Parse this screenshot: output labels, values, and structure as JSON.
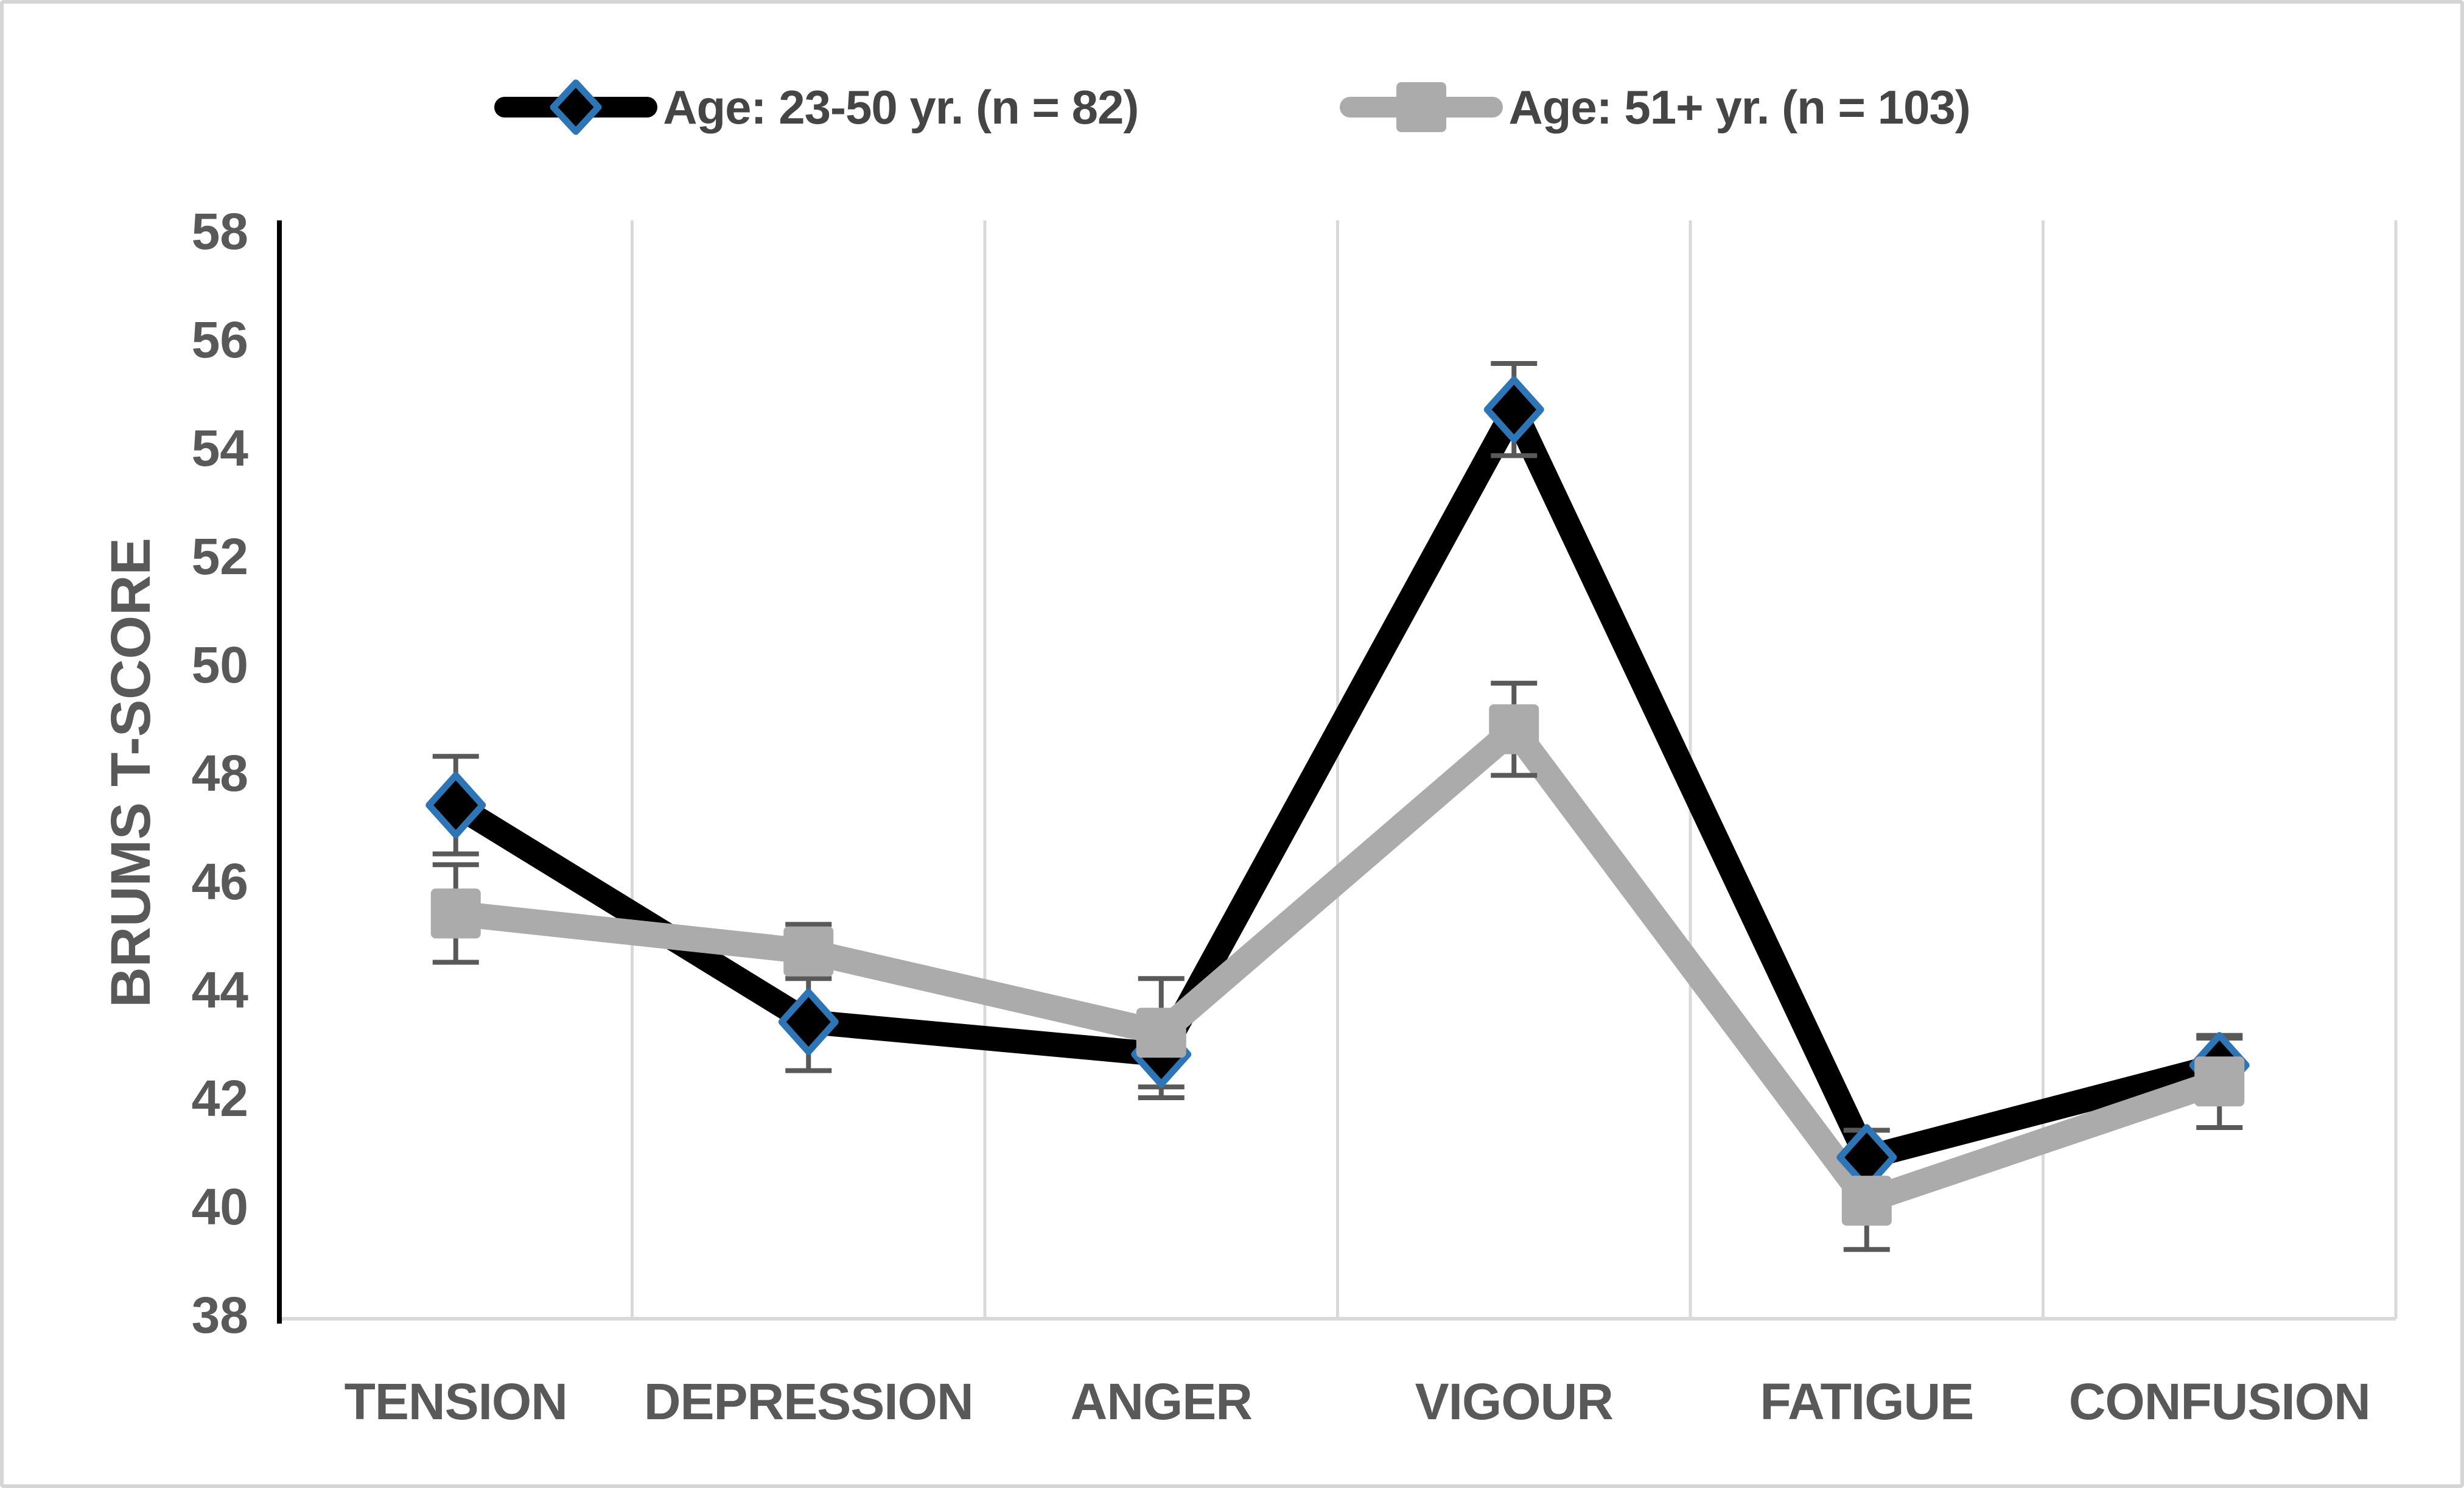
{
  "figure": {
    "background": "#ffffff",
    "border_color": "#d5d5d5"
  },
  "legend": {
    "position": "top-center",
    "text_color": "#454545",
    "items": [
      {
        "label": "Age: 23-50 yr. (n = 82)",
        "marker": "diamond"
      },
      {
        "label": "Age: 51+ yr. (n = 103)",
        "marker": "square"
      }
    ]
  },
  "chart_data": {
    "type": "line",
    "title": "",
    "xlabel": "",
    "ylabel": "BRUMS T-SCORE",
    "categories": [
      "TENSION",
      "DEPRESSION",
      "ANGER",
      "VIGOUR",
      "FATIGUE",
      "CONFUSION"
    ],
    "series": [
      {
        "name": "Age: 23-50 yr. (n = 82)",
        "color": "#000000",
        "marker": "diamond",
        "marker_fill": "#000000",
        "marker_border": "#2e75b6",
        "values": [
          47.4,
          43.4,
          42.8,
          54.7,
          40.9,
          42.6
        ],
        "error": [
          0.9,
          0.9,
          0.8,
          0.85,
          0.5,
          0.5
        ]
      },
      {
        "name": "Age: 51+ yr. (n = 103)",
        "color": "#ababab",
        "marker": "square",
        "marker_fill": "#ababab",
        "marker_border": "#ababab",
        "values": [
          45.4,
          44.7,
          43.2,
          48.8,
          40.1,
          42.3
        ],
        "error": [
          0.9,
          0.5,
          1.0,
          0.85,
          0.9,
          0.85
        ]
      }
    ],
    "ylim": [
      38,
      58
    ],
    "ytick_step": 2,
    "yticks": [
      58,
      56,
      54,
      52,
      50,
      48,
      46,
      44,
      42,
      40,
      38
    ],
    "grid": "vertical-only",
    "legend_position": "top",
    "axis_text_color": "#595959",
    "gridline_color": "#d9d9d9",
    "x_axis_line_color": "#d9d9d9",
    "y_axis_line_color": "#000000",
    "error_bar_color": "#595959"
  }
}
